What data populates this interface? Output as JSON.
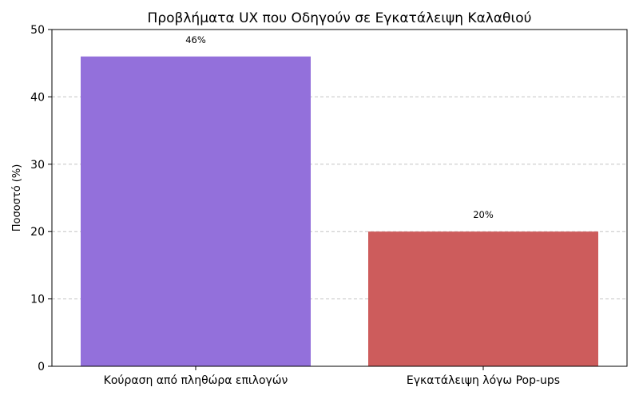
{
  "chart_data": {
    "type": "bar",
    "title": "Προβλήματα UX που Οδηγούν σε Εγκατάλειψη Καλαθιού",
    "xlabel": "",
    "ylabel": "Ποσοστό (%)",
    "categories": [
      "Κούραση από πληθώρα επιλογών",
      "Εγκατάλειψη λόγω Pop-ups"
    ],
    "values": [
      46,
      20
    ],
    "value_labels": [
      "46%",
      "20%"
    ],
    "colors": [
      "#9370db",
      "#cd5c5c"
    ],
    "ylim": [
      0,
      50
    ],
    "yticks": [
      0,
      10,
      20,
      30,
      40,
      50
    ],
    "grid": "y-dashed",
    "legend": "none"
  }
}
